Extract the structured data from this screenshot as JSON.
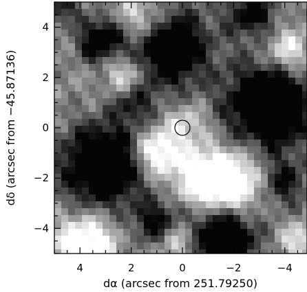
{
  "chart_data": {
    "type": "heatmap",
    "colormap": "grayscale",
    "xlabel": "dα (arcsec from 251.79250)",
    "ylabel": "dδ (arcsec from −45.87136)",
    "xlim": [
      5,
      -5
    ],
    "ylim": [
      -5,
      5
    ],
    "x_ticks": [
      "4",
      "2",
      "0",
      "−2",
      "−4"
    ],
    "y_ticks": [
      "−4",
      "−2",
      "0",
      "2",
      "4"
    ],
    "marker": {
      "shape": "circle",
      "x": 0,
      "y": 0,
      "radius_arcsec": 0.3
    },
    "grid": false
  }
}
